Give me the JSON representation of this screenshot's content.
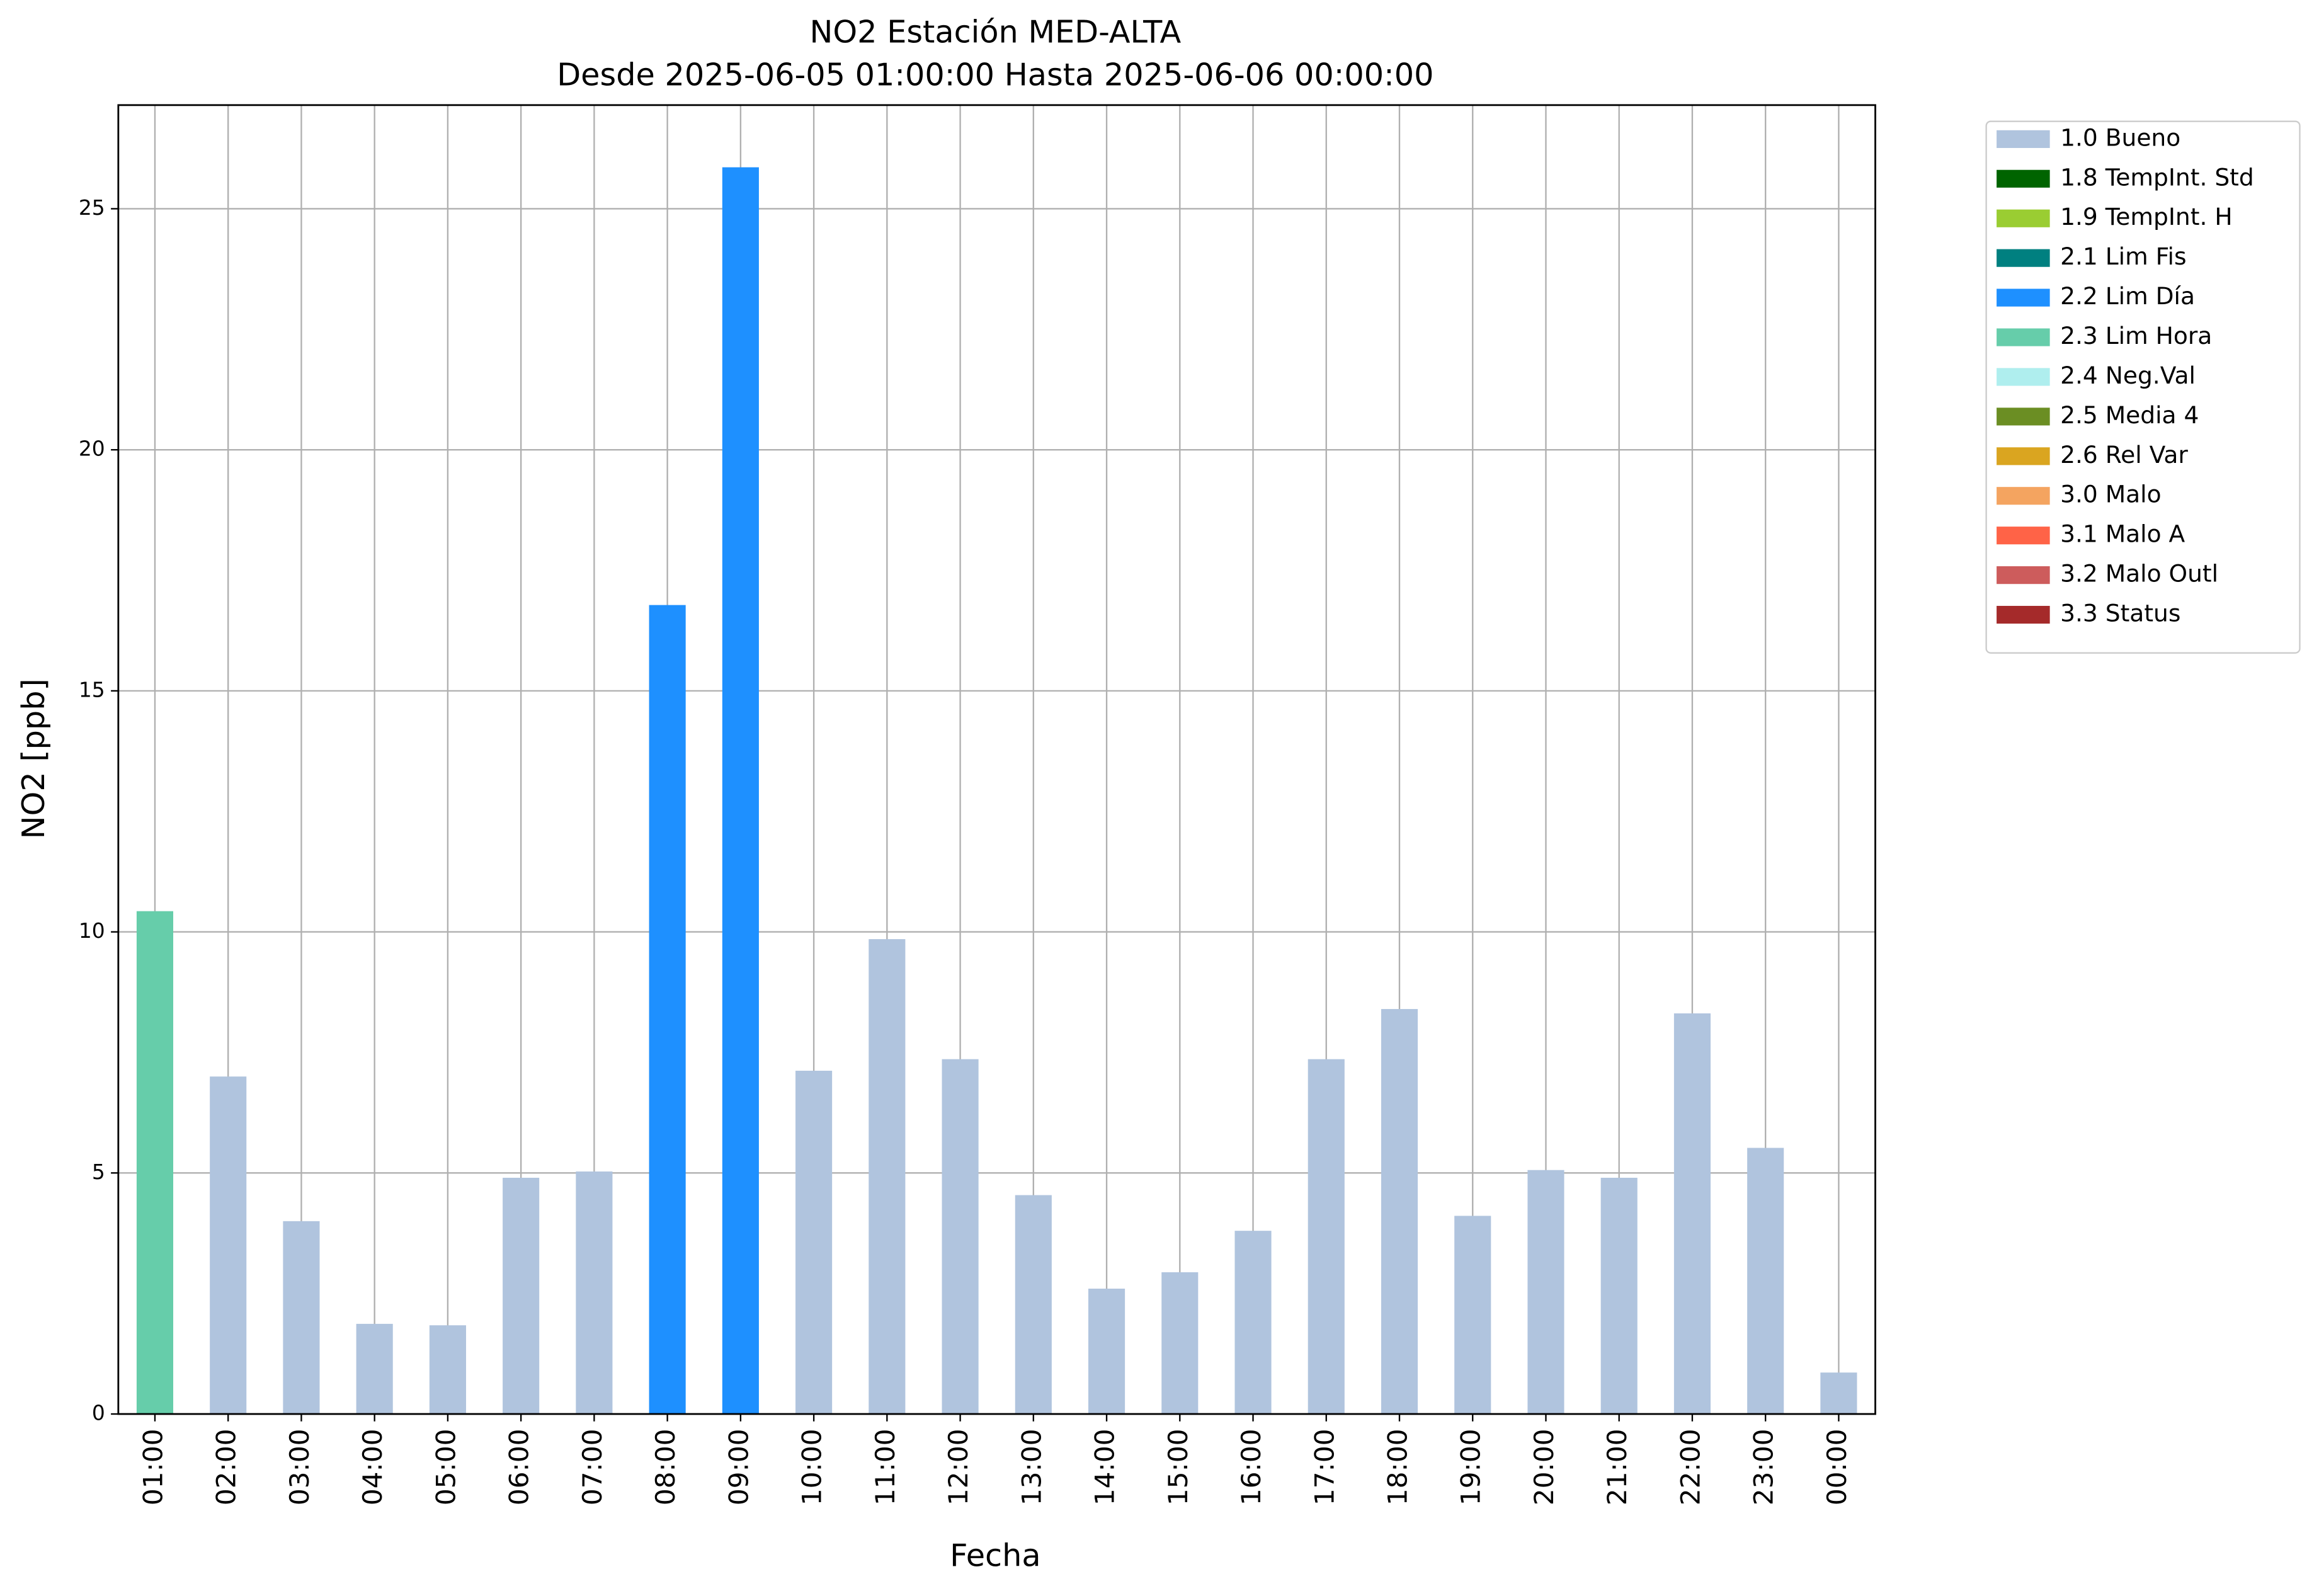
{
  "chart_data": {
    "type": "stacked-bar",
    "title": "NO2 Estación MED-ALTA",
    "subtitle": "Desde 2025-06-05 01:00:00 Hasta 2025-06-06 00:00:00",
    "x_label": "Fecha",
    "y_label": "NO2 [ppb]",
    "categories": [
      "01:00",
      "02:00",
      "03:00",
      "04:00",
      "05:00",
      "06:00",
      "07:00",
      "08:00",
      "09:00",
      "10:00",
      "11:00",
      "12:00",
      "13:00",
      "14:00",
      "15:00",
      "16:00",
      "17:00",
      "18:00",
      "19:00",
      "20:00",
      "21:00",
      "22:00",
      "23:00",
      "00:00"
    ],
    "series": [
      {
        "name": "1.0 Bueno",
        "color": "#b0c4de",
        "values": [
          null,
          7.0,
          4.0,
          1.87,
          1.84,
          4.9,
          5.03,
          null,
          null,
          7.12,
          9.85,
          7.36,
          4.54,
          2.6,
          2.94,
          3.8,
          7.36,
          8.4,
          4.11,
          5.06,
          4.9,
          8.31,
          5.52,
          0.86
        ]
      },
      {
        "name": "1.8 TempInt. Std",
        "color": "#006400",
        "values": [
          null,
          null,
          null,
          null,
          null,
          null,
          null,
          null,
          null,
          null,
          null,
          null,
          null,
          null,
          null,
          null,
          null,
          null,
          null,
          null,
          null,
          null,
          null,
          null
        ]
      },
      {
        "name": "1.9 TempInt. H",
        "color": "#9acd32",
        "values": [
          null,
          null,
          null,
          null,
          null,
          null,
          null,
          null,
          null,
          null,
          null,
          null,
          null,
          null,
          null,
          null,
          null,
          null,
          null,
          null,
          null,
          null,
          null,
          null
        ]
      },
      {
        "name": "2.1 Lim Fis",
        "color": "#008080",
        "values": [
          null,
          null,
          null,
          null,
          null,
          null,
          null,
          null,
          null,
          null,
          null,
          null,
          null,
          null,
          null,
          null,
          null,
          null,
          null,
          null,
          null,
          null,
          null,
          null
        ]
      },
      {
        "name": "2.2 Lim Día",
        "color": "#1e90ff",
        "values": [
          null,
          null,
          null,
          null,
          null,
          null,
          null,
          16.78,
          25.86,
          null,
          null,
          null,
          null,
          null,
          null,
          null,
          null,
          null,
          null,
          null,
          null,
          null,
          null,
          null
        ]
      },
      {
        "name": "2.3 Lim Hora",
        "color": "#66cdaa",
        "values": [
          10.43,
          null,
          null,
          null,
          null,
          null,
          null,
          null,
          null,
          null,
          null,
          null,
          null,
          null,
          null,
          null,
          null,
          null,
          null,
          null,
          null,
          null,
          null,
          null
        ]
      },
      {
        "name": "2.4 Neg.Val",
        "color": "#afeeee",
        "values": [
          null,
          null,
          null,
          null,
          null,
          null,
          null,
          null,
          null,
          null,
          null,
          null,
          null,
          null,
          null,
          null,
          null,
          null,
          null,
          null,
          null,
          null,
          null,
          null
        ]
      },
      {
        "name": "2.5 Media 4",
        "color": "#6b8e23",
        "values": [
          null,
          null,
          null,
          null,
          null,
          null,
          null,
          null,
          null,
          null,
          null,
          null,
          null,
          null,
          null,
          null,
          null,
          null,
          null,
          null,
          null,
          null,
          null,
          null
        ]
      },
      {
        "name": "2.6 Rel Var",
        "color": "#daa520",
        "values": [
          null,
          null,
          null,
          null,
          null,
          null,
          null,
          null,
          null,
          null,
          null,
          null,
          null,
          null,
          null,
          null,
          null,
          null,
          null,
          null,
          null,
          null,
          null,
          null
        ]
      },
      {
        "name": "3.0 Malo",
        "color": "#f4a460",
        "values": [
          null,
          null,
          null,
          null,
          null,
          null,
          null,
          null,
          null,
          null,
          null,
          null,
          null,
          null,
          null,
          null,
          null,
          null,
          null,
          null,
          null,
          null,
          null,
          null
        ]
      },
      {
        "name": "3.1 Malo A",
        "color": "#ff6347",
        "values": [
          null,
          null,
          null,
          null,
          null,
          null,
          null,
          null,
          null,
          null,
          null,
          null,
          null,
          null,
          null,
          null,
          null,
          null,
          null,
          null,
          null,
          null,
          null,
          null
        ]
      },
      {
        "name": "3.2 Malo Outl",
        "color": "#cd5c5c",
        "values": [
          null,
          null,
          null,
          null,
          null,
          null,
          null,
          null,
          null,
          null,
          null,
          null,
          null,
          null,
          null,
          null,
          null,
          null,
          null,
          null,
          null,
          null,
          null,
          null
        ]
      },
      {
        "name": "3.3 Status",
        "color": "#a52a2a",
        "values": [
          null,
          null,
          null,
          null,
          null,
          null,
          null,
          null,
          null,
          null,
          null,
          null,
          null,
          null,
          null,
          null,
          null,
          null,
          null,
          null,
          null,
          null,
          null,
          null
        ]
      }
    ],
    "ylim": [
      0,
      27.15
    ],
    "yticks": [
      0,
      5,
      10,
      15,
      20,
      25
    ],
    "grid": true,
    "legend": "outside-upper-right"
  }
}
